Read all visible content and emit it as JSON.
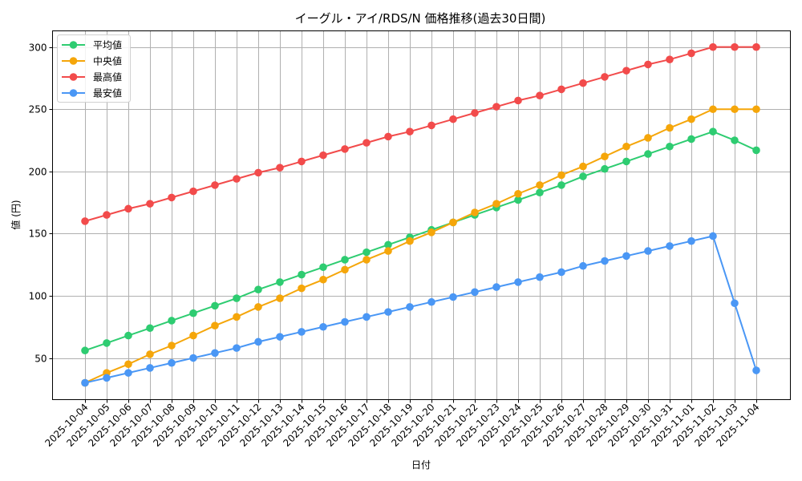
{
  "chart_data": {
    "type": "line",
    "title": "イーグル・アイ/RDS/N 価格推移(過去30日間)",
    "xlabel": "日付",
    "ylabel": "値 (円)",
    "ylim": [
      16.5,
      313
    ],
    "yticks": [
      50,
      100,
      150,
      200,
      250,
      300
    ],
    "grid": true,
    "legend_position": "upper left",
    "x": [
      "2025-10-04",
      "2025-10-05",
      "2025-10-06",
      "2025-10-07",
      "2025-10-08",
      "2025-10-09",
      "2025-10-10",
      "2025-10-11",
      "2025-10-12",
      "2025-10-13",
      "2025-10-14",
      "2025-10-15",
      "2025-10-16",
      "2025-10-17",
      "2025-10-18",
      "2025-10-19",
      "2025-10-20",
      "2025-10-21",
      "2025-10-22",
      "2025-10-23",
      "2025-10-24",
      "2025-10-25",
      "2025-10-26",
      "2025-10-27",
      "2025-10-28",
      "2025-10-29",
      "2025-10-30",
      "2025-10-31",
      "2025-11-01",
      "2025-11-02",
      "2025-11-03",
      "2025-11-04"
    ],
    "series": [
      {
        "name": "平均値",
        "color": "#2ecc71",
        "values": [
          56,
          62,
          68,
          74,
          80,
          86,
          92,
          98,
          105,
          111,
          117,
          123,
          129,
          135,
          141,
          147,
          153,
          159,
          165,
          171,
          177,
          183,
          189,
          196,
          202,
          208,
          214,
          220,
          226,
          232,
          225,
          217
        ]
      },
      {
        "name": "中央値",
        "color": "#f5a60a",
        "values": [
          30,
          38,
          45,
          53,
          60,
          68,
          76,
          83,
          91,
          98,
          106,
          113,
          121,
          129,
          136,
          144,
          151,
          159,
          167,
          174,
          182,
          189,
          197,
          204,
          212,
          220,
          227,
          235,
          242,
          250,
          250,
          250
        ]
      },
      {
        "name": "最高値",
        "color": "#f24b4b",
        "values": [
          160,
          165,
          170,
          174,
          179,
          184,
          189,
          194,
          199,
          203,
          208,
          213,
          218,
          223,
          228,
          232,
          237,
          242,
          247,
          252,
          257,
          261,
          266,
          271,
          276,
          281,
          286,
          290,
          295,
          300,
          300,
          300
        ]
      },
      {
        "name": "最安値",
        "color": "#4a97f5",
        "values": [
          30,
          34,
          38,
          42,
          46,
          50,
          54,
          58,
          63,
          67,
          71,
          75,
          79,
          83,
          87,
          91,
          95,
          99,
          103,
          107,
          111,
          115,
          119,
          124,
          128,
          132,
          136,
          140,
          144,
          148,
          94,
          40
        ]
      }
    ]
  }
}
